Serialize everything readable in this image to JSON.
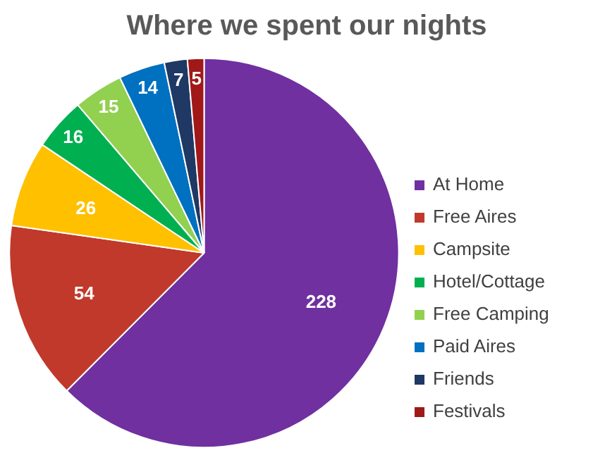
{
  "chart_data": {
    "type": "pie",
    "title": "Where we spent our nights",
    "categories": [
      "At Home",
      "Free Aires",
      "Campsite",
      "Hotel/Cottage",
      "Free Camping",
      "Paid Aires",
      "Friends",
      "Festivals"
    ],
    "values": [
      228,
      54,
      26,
      16,
      15,
      14,
      7,
      5
    ],
    "colors": [
      "#7030a0",
      "#c0392b",
      "#ffc000",
      "#00b050",
      "#92d050",
      "#0070c0",
      "#1f3864",
      "#a01818"
    ],
    "data_labels": true,
    "legend": "right"
  }
}
